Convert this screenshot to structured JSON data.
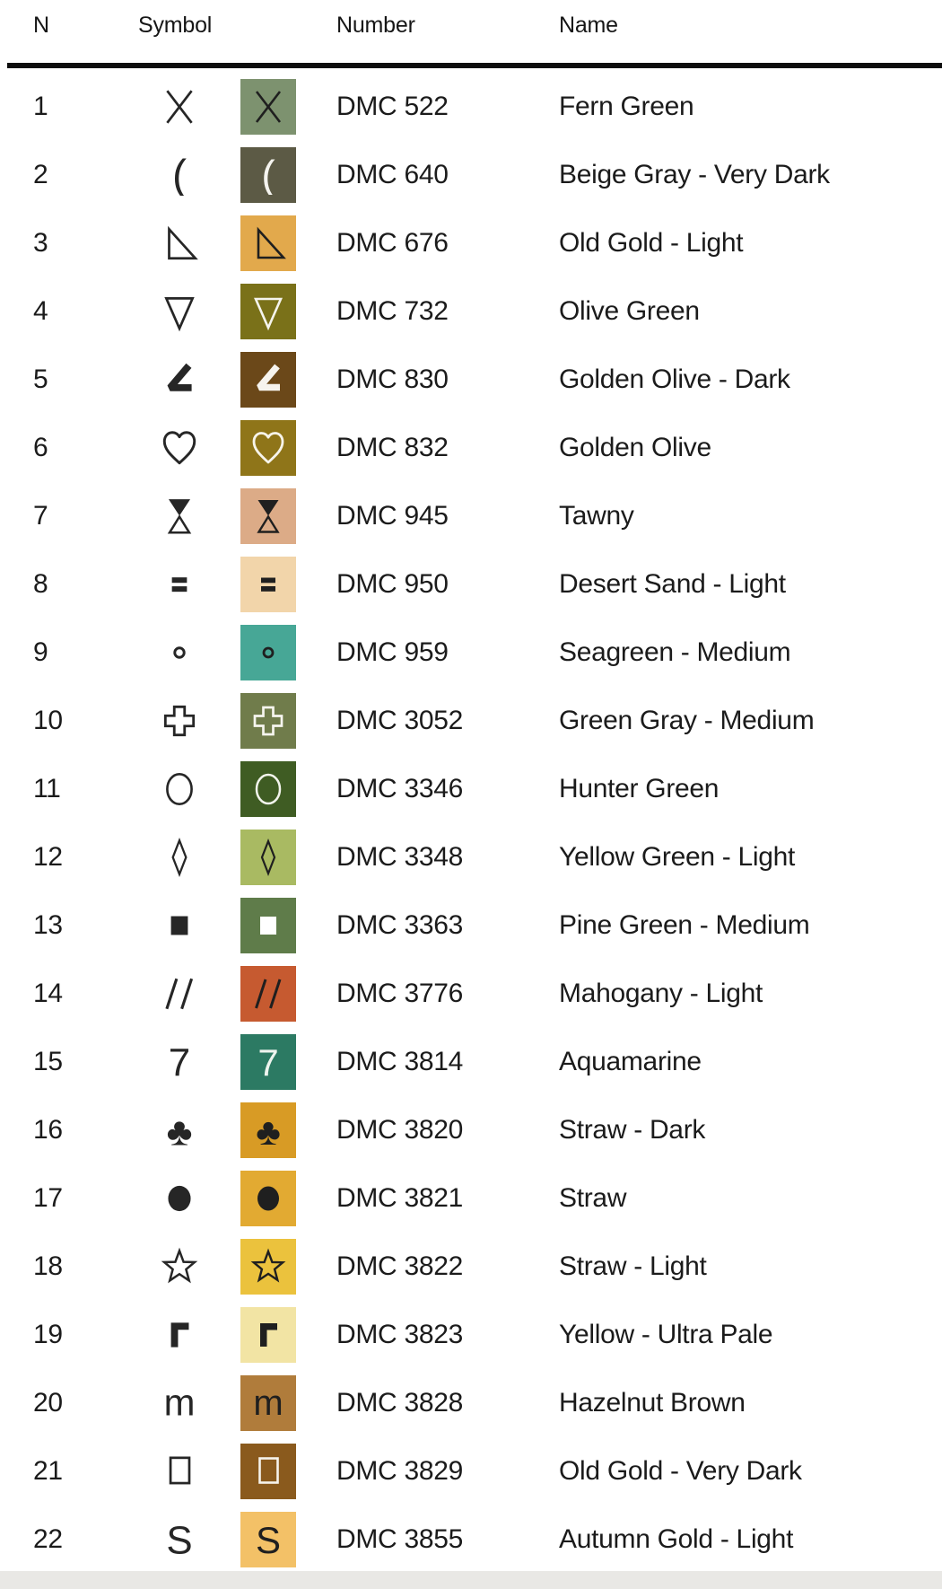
{
  "header": {
    "n": "N",
    "symbol": "Symbol",
    "number": "Number",
    "name": "Name"
  },
  "colors": {
    "text": "#1b1b1b",
    "header_rule": "#0d0d0d",
    "plain_symbol": "#262626",
    "footer_strip": "#e9e8e5",
    "background": "#ffffff"
  },
  "rows": [
    {
      "n": "1",
      "symbol": "x-cross-icon",
      "swatch_color": "#7d926f",
      "symbol_color_on_swatch": "#1f1f1f",
      "number": "DMC 522",
      "name": "Fern Green"
    },
    {
      "n": "2",
      "symbol": "left-paren-icon",
      "swatch_color": "#5c5a45",
      "symbol_color_on_swatch": "#f5f4ef",
      "number": "DMC 640",
      "name": "Beige Gray - Very Dark"
    },
    {
      "n": "3",
      "symbol": "triangle-lower-left-icon",
      "swatch_color": "#e2a94c",
      "symbol_color_on_swatch": "#1f1f1f",
      "number": "DMC 676",
      "name": "Old Gold - Light"
    },
    {
      "n": "4",
      "symbol": "triangle-down-icon",
      "swatch_color": "#7a7119",
      "symbol_color_on_swatch": "#f5f4ec",
      "number": "DMC 732",
      "name": "Olive Green"
    },
    {
      "n": "5",
      "symbol": "angle-filled-icon",
      "swatch_color": "#6b4819",
      "symbol_color_on_swatch": "#f7f4ee",
      "number": "DMC 830",
      "name": "Golden Olive - Dark"
    },
    {
      "n": "6",
      "symbol": "heart-outline-icon",
      "swatch_color": "#8f7519",
      "symbol_color_on_swatch": "#f7f4ea",
      "number": "DMC 832",
      "name": "Golden Olive"
    },
    {
      "n": "7",
      "symbol": "hourglass-half-icon",
      "swatch_color": "#dcab87",
      "symbol_color_on_swatch": "#1f1f1f",
      "number": "DMC 945",
      "name": "Tawny"
    },
    {
      "n": "8",
      "symbol": "double-bar-icon",
      "swatch_color": "#f2d5aa",
      "symbol_color_on_swatch": "#1f1f1f",
      "number": "DMC 950",
      "name": "Desert Sand - Light"
    },
    {
      "n": "9",
      "symbol": "circle-small-icon",
      "swatch_color": "#47a796",
      "symbol_color_on_swatch": "#1f1f1f",
      "number": "DMC 959",
      "name": "Seagreen - Medium"
    },
    {
      "n": "10",
      "symbol": "cross-outline-icon",
      "swatch_color": "#707c4b",
      "symbol_color_on_swatch": "#f6f5ef",
      "number": "DMC 3052",
      "name": "Green Gray - Medium"
    },
    {
      "n": "11",
      "symbol": "circle-outline-icon",
      "swatch_color": "#3f5c23",
      "symbol_color_on_swatch": "#f2f4ec",
      "number": "DMC 3346",
      "name": "Hunter Green"
    },
    {
      "n": "12",
      "symbol": "diamond-outline-icon",
      "swatch_color": "#a9ba62",
      "symbol_color_on_swatch": "#1f1f1f",
      "number": "DMC 3348",
      "name": "Yellow Green - Light"
    },
    {
      "n": "13",
      "symbol": "square-filled-icon",
      "swatch_color": "#5f7c4a",
      "symbol_color_on_swatch": "#ffffff",
      "number": "DMC 3363",
      "name": "Pine Green - Medium"
    },
    {
      "n": "14",
      "symbol": "double-slash-icon",
      "swatch_color": "#c65a30",
      "symbol_color_on_swatch": "#1f1f1f",
      "number": "DMC 3776",
      "name": "Mahogany - Light"
    },
    {
      "n": "15",
      "symbol": "digit-seven-icon",
      "swatch_color": "#2c7a63",
      "symbol_color_on_swatch": "#eef4ee",
      "number": "DMC 3814",
      "name": "Aquamarine"
    },
    {
      "n": "16",
      "symbol": "club-icon",
      "swatch_color": "#d89b25",
      "symbol_color_on_swatch": "#1f1f1f",
      "number": "DMC 3820",
      "name": "Straw - Dark"
    },
    {
      "n": "17",
      "symbol": "dot-filled-icon",
      "swatch_color": "#e2aa32",
      "symbol_color_on_swatch": "#1f1f1f",
      "number": "DMC 3821",
      "name": "Straw"
    },
    {
      "n": "18",
      "symbol": "star-outline-icon",
      "swatch_color": "#ebc23d",
      "symbol_color_on_swatch": "#1f1f1f",
      "number": "DMC 3822",
      "name": "Straw - Light"
    },
    {
      "n": "19",
      "symbol": "gamma-corner-icon",
      "swatch_color": "#f2e4a4",
      "symbol_color_on_swatch": "#1f1f1f",
      "number": "DMC 3823",
      "name": "Yellow - Ultra Pale"
    },
    {
      "n": "20",
      "symbol": "letter-m-icon",
      "swatch_color": "#b07c3b",
      "symbol_color_on_swatch": "#1f1f1f",
      "number": "DMC 3828",
      "name": "Hazelnut Brown"
    },
    {
      "n": "21",
      "symbol": "square-outline-icon",
      "swatch_color": "#8a5a1d",
      "symbol_color_on_swatch": "#f6f3ec",
      "number": "DMC 3829",
      "name": "Old Gold - Very Dark"
    },
    {
      "n": "22",
      "symbol": "letter-s-icon",
      "swatch_color": "#f3c167",
      "symbol_color_on_swatch": "#1f1f1f",
      "number": "DMC 3855",
      "name": "Autumn Gold - Light"
    }
  ]
}
